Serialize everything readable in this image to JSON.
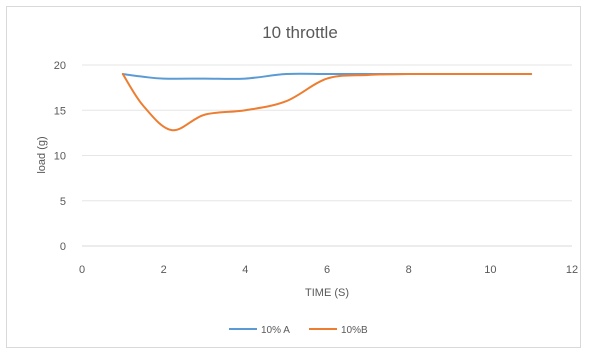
{
  "chart_data": {
    "type": "line",
    "title": "10 throttle",
    "xlabel": "TIME (S)",
    "ylabel": "load (g)",
    "xlim": [
      0,
      12
    ],
    "ylim": [
      0,
      20
    ],
    "xticks": [
      0,
      2,
      4,
      6,
      8,
      10,
      12
    ],
    "yticks": [
      0,
      5,
      10,
      15,
      20
    ],
    "grid": "horizontal",
    "legend_position": "bottom",
    "series": [
      {
        "name": "10% A",
        "color": "#5b9bd5",
        "x": [
          1,
          1.5,
          2,
          3,
          4,
          5,
          6,
          7,
          8,
          9,
          10,
          11
        ],
        "y": [
          19.0,
          18.7,
          18.5,
          18.5,
          18.5,
          19.0,
          19.0,
          19.0,
          19.0,
          19.0,
          19.0,
          19.0
        ]
      },
      {
        "name": "10%B",
        "color": "#ed7d31",
        "x": [
          1,
          1.5,
          2.2,
          3,
          4,
          5,
          6,
          7,
          8,
          9,
          10,
          11
        ],
        "y": [
          19.0,
          15.5,
          12.8,
          14.5,
          15.0,
          16.0,
          18.5,
          18.9,
          19.0,
          19.0,
          19.0,
          19.0
        ]
      }
    ]
  }
}
